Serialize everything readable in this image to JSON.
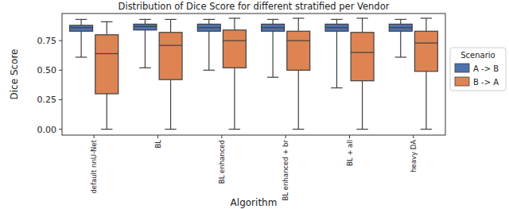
{
  "chart_data": {
    "type": "box",
    "title": "Distribution of Dice Score for different stratified per Vendor",
    "x_label": "Algorithm",
    "y_label": "Dice Score",
    "categories": [
      "default nnU-Net",
      "BL",
      "BL enhanced",
      "BL enhanced + br",
      "BL + all",
      "heavy DA"
    ],
    "series": [
      {
        "name": "A -> B",
        "color": "#4c72b0",
        "min": [
          0.61,
          0.52,
          0.5,
          0.44,
          0.35,
          0.61
        ],
        "q1": [
          0.83,
          0.84,
          0.83,
          0.83,
          0.83,
          0.83
        ],
        "median": [
          0.86,
          0.87,
          0.86,
          0.86,
          0.86,
          0.86
        ],
        "q3": [
          0.88,
          0.89,
          0.89,
          0.89,
          0.89,
          0.89
        ],
        "max": [
          0.93,
          0.93,
          0.93,
          0.93,
          0.93,
          0.93
        ]
      },
      {
        "name": "B -> A",
        "color": "#dd8452",
        "min": [
          0.0,
          0.0,
          0.0,
          0.0,
          0.0,
          0.0
        ],
        "q1": [
          0.3,
          0.42,
          0.52,
          0.5,
          0.41,
          0.49
        ],
        "median": [
          0.64,
          0.71,
          0.75,
          0.75,
          0.65,
          0.73
        ],
        "q3": [
          0.8,
          0.82,
          0.84,
          0.83,
          0.82,
          0.83
        ],
        "max": [
          0.91,
          0.93,
          0.94,
          0.94,
          0.94,
          0.94
        ]
      }
    ],
    "legend_title": "Scenario",
    "legend": "right",
    "grid": false,
    "ylim": [
      -0.05,
      0.98
    ],
    "yticks": [
      {
        "value": 0,
        "label": "0.00"
      },
      {
        "value": 0.25,
        "label": "0.25"
      },
      {
        "value": 0.5,
        "label": "0.50"
      },
      {
        "value": 0.75,
        "label": "0.75"
      }
    ]
  }
}
